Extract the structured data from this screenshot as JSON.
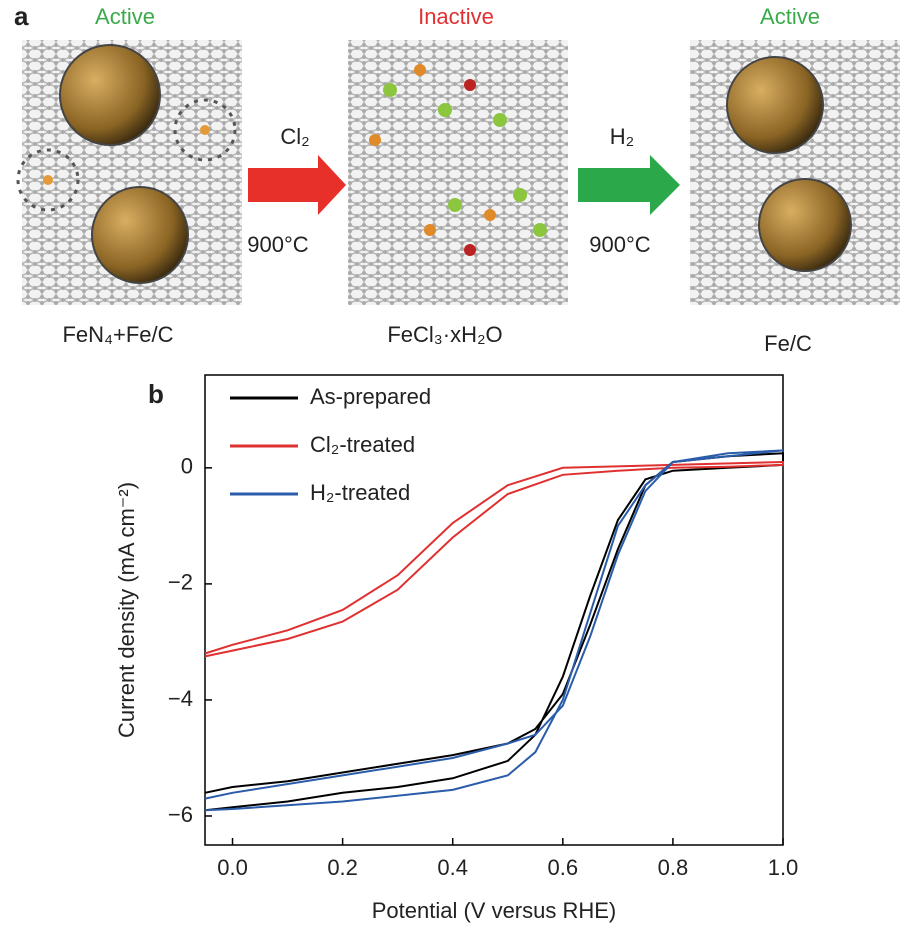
{
  "panel_a": {
    "label": "a",
    "states": [
      "Active",
      "Inactive",
      "Active"
    ],
    "steps": [
      {
        "gas": "Cl₂",
        "temperature": "900°C"
      },
      {
        "gas": "H₂",
        "temperature": "900°C"
      }
    ],
    "materials": [
      "FeN₄+Fe/C",
      "FeCl₃·xH₂O",
      "Fe/C"
    ]
  },
  "chart_data": {
    "type": "line",
    "panel_label": "b",
    "xlabel": "Potential (V versus RHE)",
    "ylabel": "Current density (mA cm⁻²)",
    "xlim": [
      -0.05,
      1.0
    ],
    "ylim": [
      -6.5,
      1.6
    ],
    "xticks": [
      {
        "value": 0,
        "label": "0.0"
      },
      0.2,
      0.4,
      0.6,
      0.8,
      {
        "value": 1,
        "label": "1.0"
      }
    ],
    "yticks": [
      0,
      {
        "value": -2,
        "label": "−2"
      },
      {
        "value": -4,
        "label": "−4"
      },
      {
        "value": -6,
        "label": "−6"
      }
    ],
    "legend": "upper left",
    "series": [
      {
        "name": "As-prepared",
        "color": "#000000",
        "x": [
          -0.05,
          0.0,
          0.1,
          0.2,
          0.3,
          0.4,
          0.5,
          0.55,
          0.6,
          0.65,
          0.7,
          0.75,
          0.8,
          0.9,
          1.0,
          1.0,
          0.9,
          0.8,
          0.75,
          0.7,
          0.65,
          0.6,
          0.55,
          0.5,
          0.4,
          0.3,
          0.2,
          0.1,
          0.0,
          -0.05
        ],
        "values": [
          -5.9,
          -5.85,
          -5.75,
          -5.6,
          -5.5,
          -5.35,
          -5.05,
          -4.6,
          -3.6,
          -2.2,
          -0.9,
          -0.2,
          -0.05,
          0.0,
          0.05,
          0.25,
          0.2,
          0.1,
          -0.3,
          -1.4,
          -2.7,
          -3.9,
          -4.5,
          -4.75,
          -4.95,
          -5.1,
          -5.25,
          -5.4,
          -5.5,
          -5.6
        ]
      },
      {
        "name": "Cl₂-treated",
        "color": "#e03030",
        "x": [
          -0.05,
          0.0,
          0.1,
          0.2,
          0.3,
          0.4,
          0.5,
          0.6,
          0.7,
          0.8,
          0.9,
          1.0,
          1.0,
          0.8,
          0.6,
          0.5,
          0.4,
          0.3,
          0.2,
          0.1,
          0.0,
          -0.05
        ],
        "values": [
          -3.25,
          -3.15,
          -2.95,
          -2.65,
          -2.1,
          -1.2,
          -0.45,
          -0.12,
          -0.05,
          0.0,
          0.02,
          0.05,
          0.1,
          0.05,
          0.0,
          -0.3,
          -0.95,
          -1.85,
          -2.45,
          -2.8,
          -3.05,
          -3.2
        ]
      },
      {
        "name": "H₂-treated",
        "color": "#2a5caa",
        "x": [
          -0.05,
          0.0,
          0.2,
          0.4,
          0.5,
          0.55,
          0.6,
          0.65,
          0.7,
          0.75,
          0.8,
          0.9,
          1.0,
          1.0,
          0.9,
          0.8,
          0.75,
          0.7,
          0.65,
          0.6,
          0.55,
          0.5,
          0.4,
          0.2,
          0.0,
          -0.05
        ],
        "values": [
          -5.9,
          -5.88,
          -5.75,
          -5.55,
          -5.3,
          -4.9,
          -4.0,
          -2.5,
          -1.0,
          -0.3,
          0.1,
          0.2,
          0.3,
          0.3,
          0.25,
          0.1,
          -0.4,
          -1.5,
          -2.9,
          -4.1,
          -4.6,
          -4.75,
          -5.0,
          -5.3,
          -5.6,
          -5.7
        ]
      }
    ]
  }
}
